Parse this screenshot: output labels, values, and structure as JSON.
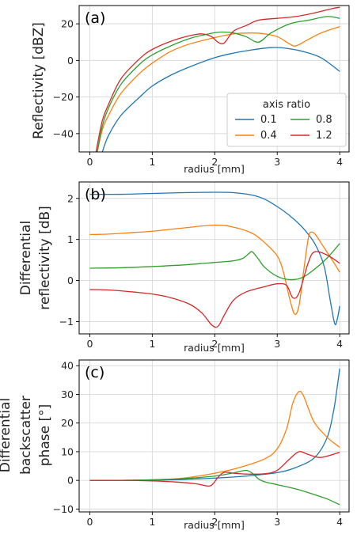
{
  "chart_data": [
    {
      "type": "line",
      "panel_label": "(a)",
      "xlabel": "",
      "ylabel": "Reflectivity [dBZ]",
      "xlim": [
        -0.17,
        4.15
      ],
      "ylim": [
        -50,
        30
      ],
      "xticks": [
        0,
        1,
        2,
        3,
        4
      ],
      "yticks": [
        -40,
        -20,
        0,
        20
      ],
      "grid": true,
      "legend": {
        "title": "axis ratio",
        "placement": "lower-right",
        "entries": [
          "0.1",
          "0.4",
          "0.8",
          "1.2"
        ]
      },
      "series": [
        {
          "name": "0.1",
          "color": "#1f77b4",
          "x": [
            0.2,
            0.3,
            0.5,
            0.8,
            1.0,
            1.3,
            1.6,
            2.0,
            2.3,
            2.6,
            2.9,
            3.1,
            3.4,
            3.7,
            4.0
          ],
          "y": [
            -50,
            -41,
            -30,
            -20,
            -14,
            -8,
            -3.5,
            1.5,
            4,
            5.8,
            7,
            6.8,
            5,
            1.5,
            -6
          ]
        },
        {
          "name": "0.4",
          "color": "#ff7f0e",
          "x": [
            0.12,
            0.2,
            0.3,
            0.5,
            0.8,
            1.0,
            1.3,
            1.6,
            2.0,
            2.3,
            2.6,
            2.8,
            3.0,
            3.2,
            3.3,
            3.5,
            3.7,
            4.0
          ],
          "y": [
            -50,
            -38,
            -30,
            -18,
            -7,
            -1.5,
            5,
            9,
            12.5,
            14.5,
            15,
            14.5,
            13,
            9,
            8,
            11.5,
            15,
            18.5
          ]
        },
        {
          "name": "0.8",
          "color": "#2ca02c",
          "x": [
            0.12,
            0.2,
            0.3,
            0.5,
            0.8,
            1.0,
            1.3,
            1.6,
            1.9,
            2.1,
            2.3,
            2.5,
            2.7,
            2.9,
            3.2,
            3.5,
            3.8,
            4.0
          ],
          "y": [
            -50,
            -36,
            -26,
            -13,
            -2,
            3,
            8,
            12,
            14.5,
            15.5,
            15,
            13,
            10,
            15,
            20,
            22,
            24,
            23
          ]
        },
        {
          "name": "1.2",
          "color": "#d62728",
          "x": [
            0.1,
            0.2,
            0.3,
            0.5,
            0.8,
            1.0,
            1.3,
            1.6,
            1.8,
            1.95,
            2.05,
            2.15,
            2.3,
            2.5,
            2.7,
            3.0,
            3.3,
            3.6,
            3.9,
            4.0
          ],
          "y": [
            -50,
            -33,
            -24,
            -10,
            1,
            6,
            10.5,
            13.5,
            14.5,
            13,
            10,
            9.5,
            16,
            19,
            22,
            23,
            24,
            26,
            28.5,
            29
          ]
        }
      ]
    },
    {
      "type": "line",
      "panel_label": "(b)",
      "xlabel": "radius [mm]",
      "ylabel": "Differential reflectivity [dB]",
      "xlim": [
        -0.17,
        4.15
      ],
      "ylim": [
        -1.3,
        2.4
      ],
      "xticks": [
        0,
        1,
        2,
        3,
        4
      ],
      "yticks": [
        -1,
        0,
        1,
        2
      ],
      "grid": true,
      "series": [
        {
          "name": "0.1",
          "color": "#1f77b4",
          "x": [
            0.0,
            0.5,
            1.0,
            1.5,
            2.0,
            2.3,
            2.6,
            2.8,
            3.0,
            3.2,
            3.4,
            3.6,
            3.75,
            3.85,
            3.92,
            3.96,
            4.0
          ],
          "y": [
            2.1,
            2.1,
            2.12,
            2.14,
            2.15,
            2.14,
            2.08,
            1.98,
            1.8,
            1.58,
            1.3,
            0.9,
            0.35,
            -0.5,
            -1.05,
            -0.95,
            -0.62
          ]
        },
        {
          "name": "0.4",
          "color": "#ff7f0e",
          "x": [
            0.0,
            0.3,
            0.7,
            1.0,
            1.5,
            2.0,
            2.3,
            2.6,
            2.8,
            3.0,
            3.1,
            3.2,
            3.28,
            3.35,
            3.42,
            3.5,
            3.55,
            3.62,
            3.75,
            3.9,
            4.0
          ],
          "y": [
            1.12,
            1.13,
            1.17,
            1.2,
            1.28,
            1.35,
            1.3,
            1.15,
            0.92,
            0.6,
            0.2,
            -0.45,
            -0.82,
            -0.6,
            0.2,
            1.05,
            1.18,
            1.1,
            0.8,
            0.45,
            0.2
          ]
        },
        {
          "name": "0.8",
          "color": "#2ca02c",
          "x": [
            0.0,
            0.5,
            1.0,
            1.5,
            2.0,
            2.3,
            2.45,
            2.55,
            2.6,
            2.7,
            2.8,
            3.0,
            3.2,
            3.4,
            3.6,
            3.8,
            4.0
          ],
          "y": [
            0.3,
            0.31,
            0.34,
            0.38,
            0.44,
            0.48,
            0.54,
            0.66,
            0.7,
            0.52,
            0.32,
            0.1,
            0.02,
            0.07,
            0.28,
            0.55,
            0.9
          ]
        },
        {
          "name": "1.2",
          "color": "#d62728",
          "x": [
            0.0,
            0.3,
            0.7,
            1.0,
            1.3,
            1.6,
            1.8,
            1.95,
            2.05,
            2.15,
            2.3,
            2.5,
            2.8,
            3.0,
            3.15,
            3.25,
            3.35,
            3.5,
            3.6,
            3.8,
            4.0
          ],
          "y": [
            -0.22,
            -0.23,
            -0.28,
            -0.33,
            -0.42,
            -0.58,
            -0.8,
            -1.08,
            -1.12,
            -0.85,
            -0.48,
            -0.28,
            -0.15,
            -0.08,
            -0.12,
            -0.42,
            -0.3,
            0.45,
            0.7,
            0.62,
            0.42
          ]
        }
      ]
    },
    {
      "type": "line",
      "panel_label": "(c)",
      "xlabel": "radius [mm]",
      "ylabel": "Differential backscatter phase [°]",
      "xlim": [
        -0.17,
        4.15
      ],
      "ylim": [
        -11,
        42
      ],
      "xticks": [
        0,
        1,
        2,
        3,
        4
      ],
      "yticks": [
        -10,
        0,
        10,
        20,
        30,
        40
      ],
      "grid": true,
      "series": [
        {
          "name": "0.1",
          "color": "#1f77b4",
          "x": [
            0.0,
            0.5,
            1.0,
            1.5,
            2.0,
            2.5,
            3.0,
            3.3,
            3.6,
            3.8,
            3.9,
            3.95,
            4.0
          ],
          "y": [
            0,
            0,
            0.1,
            0.3,
            0.8,
            1.5,
            2.7,
            4.5,
            8,
            15,
            24,
            31,
            39
          ]
        },
        {
          "name": "0.4",
          "color": "#ff7f0e",
          "x": [
            0.0,
            0.5,
            1.0,
            1.5,
            2.0,
            2.4,
            2.8,
            3.0,
            3.15,
            3.25,
            3.35,
            3.42,
            3.5,
            3.6,
            3.8,
            4.0
          ],
          "y": [
            0,
            0,
            0.2,
            0.8,
            2.5,
            4.5,
            7.5,
            11,
            18,
            27,
            31,
            29.5,
            25,
            20,
            15,
            11.5
          ]
        },
        {
          "name": "0.8",
          "color": "#2ca02c",
          "x": [
            0.0,
            0.5,
            1.0,
            1.5,
            2.0,
            2.3,
            2.5,
            2.6,
            2.7,
            2.8,
            3.0,
            3.3,
            3.6,
            3.8,
            4.0
          ],
          "y": [
            0,
            0,
            0.2,
            0.6,
            1.5,
            2.6,
            3.5,
            2.5,
            0.5,
            -0.5,
            -1.5,
            -3,
            -5,
            -6.5,
            -8.5
          ]
        },
        {
          "name": "1.2",
          "color": "#d62728",
          "x": [
            0.0,
            0.5,
            1.0,
            1.4,
            1.7,
            1.9,
            1.98,
            2.05,
            2.15,
            2.3,
            2.5,
            2.8,
            3.0,
            3.2,
            3.35,
            3.5,
            3.7,
            4.0
          ],
          "y": [
            0,
            0,
            -0.2,
            -0.6,
            -1.2,
            -2,
            -1,
            1,
            2.8,
            2.5,
            2.2,
            2.3,
            3.5,
            7.5,
            10,
            9,
            8,
            9.8
          ]
        }
      ]
    }
  ]
}
